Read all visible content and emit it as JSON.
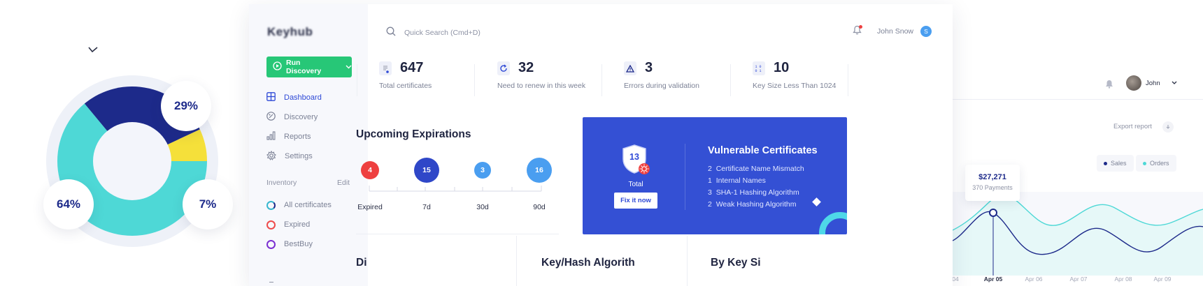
{
  "left_panel": {
    "segments": [
      {
        "label": "29%",
        "value": 29,
        "color": "#1d2a8a"
      },
      {
        "label": "7%",
        "value": 7,
        "color": "#f5e03a"
      },
      {
        "label": "64%",
        "value": 64,
        "color": "#4ed8d6"
      }
    ]
  },
  "app": {
    "logo": "Keyhub",
    "run_button": {
      "label": "Run Discovery"
    },
    "nav": [
      {
        "label": "Dashboard",
        "active": true
      },
      {
        "label": "Discovery"
      },
      {
        "label": "Reports"
      },
      {
        "label": "Settings"
      }
    ],
    "inventory": {
      "title": "Inventory",
      "edit_label": "Edit",
      "items": [
        {
          "label": "All certificates",
          "color": "#37b7cf"
        },
        {
          "label": "Expired",
          "color": "#ee4b4b"
        },
        {
          "label": "BestBuy",
          "color": "#7b2fd1"
        }
      ]
    },
    "search": {
      "placeholder": "Quick Search (Cmd+D)"
    },
    "user": {
      "name": "John Snow",
      "initial": "S"
    },
    "stats": [
      {
        "value": "647",
        "label": "Total certificates",
        "icon": "document-icon"
      },
      {
        "value": "32",
        "label": "Need to renew in this week",
        "icon": "refresh-icon"
      },
      {
        "value": "3",
        "label": "Errors during validation",
        "icon": "warning-icon"
      },
      {
        "value": "10",
        "label": "Key Size Less Than 1024",
        "icon": "binary-icon"
      }
    ],
    "upcoming": {
      "title": "Upcoming Expirations",
      "items": [
        {
          "count": "4",
          "label": "Expired",
          "color": "#ee4040"
        },
        {
          "count": "15",
          "label": "7d",
          "color": "#2f47c8"
        },
        {
          "count": "3",
          "label": "30d",
          "color": "#4a9ef0"
        },
        {
          "count": "16",
          "label": "90d",
          "color": "#4a9ef0"
        }
      ]
    },
    "vulnerable": {
      "title": "Vulnerable Certificates",
      "total_count": "13",
      "total_label": "Total",
      "fix_button": "Fix it now",
      "lines": [
        {
          "count": "2",
          "label": "Certificate Name Mismatch"
        },
        {
          "count": "1",
          "label": "Internal Names"
        },
        {
          "count": "3",
          "label": "SHA-1 Hashing Algorithm"
        },
        {
          "count": "2",
          "label": "Weak Hashing Algorithm"
        }
      ]
    },
    "bottom_headings": [
      "Di",
      "Key/Hash Algorith",
      "By Key Si"
    ]
  },
  "right_panel": {
    "user": "John",
    "export_label": "Export report",
    "legend": [
      {
        "label": "Sales",
        "color": "#1d2a8a"
      },
      {
        "label": "Orders",
        "color": "#4ed8d6"
      }
    ],
    "tooltip": {
      "value": "$27,271",
      "label": "370 Payments"
    },
    "x_labels": [
      "04",
      "Apr 05",
      "Apr 06",
      "Apr 07",
      "Apr 08",
      "Apr 09"
    ],
    "active_x_label": "Apr 05"
  }
}
